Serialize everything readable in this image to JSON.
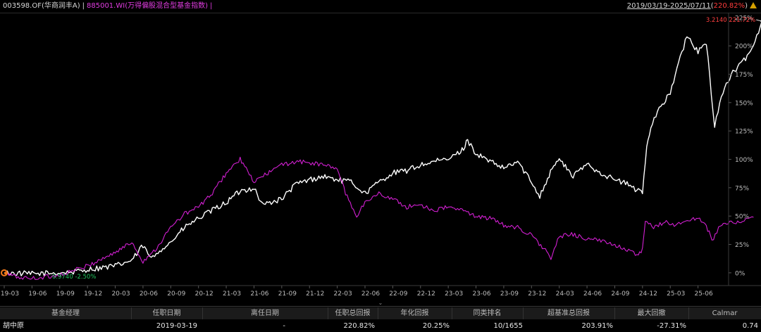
{
  "header": {
    "fund": "003598.OF(华商润丰A)",
    "separator": "|",
    "benchmark": "885001.WI(万得偏股混合型基金指数)",
    "benchmark_sep": "|",
    "date_range": "2019/03/19-2025/07/11",
    "total_return": "220.82%"
  },
  "chart_data": {
    "type": "line",
    "x_ticks": [
      "19-03",
      "19-06",
      "19-09",
      "19-12",
      "20-03",
      "20-06",
      "20-09",
      "20-12",
      "21-03",
      "21-06",
      "21-09",
      "21-12",
      "22-03",
      "22-06",
      "22-09",
      "22-12",
      "23-03",
      "23-06",
      "23-09",
      "23-12",
      "24-03",
      "24-06",
      "24-09",
      "24-12",
      "25-03",
      "25-06"
    ],
    "y_ticks": [
      "0%",
      "25%",
      "50%",
      "75%",
      "100%",
      "125%",
      "150%",
      "175%",
      "200%",
      "225%"
    ],
    "ylim": [
      -10,
      228
    ],
    "y_axis_position": "right",
    "grid": false,
    "series": [
      {
        "name": "003598.OF(华商润丰A)",
        "color": "#ffffff",
        "points": [
          [
            0,
            0
          ],
          [
            1,
            -1
          ],
          [
            2,
            0
          ],
          [
            2.6,
            1
          ],
          [
            3,
            3
          ],
          [
            4,
            6
          ],
          [
            4.6,
            11
          ],
          [
            5,
            24
          ],
          [
            5.3,
            12
          ],
          [
            5.6,
            20
          ],
          [
            6,
            27
          ],
          [
            6.5,
            40
          ],
          [
            7,
            48
          ],
          [
            7.5,
            55
          ],
          [
            8,
            62
          ],
          [
            8.5,
            72
          ],
          [
            9,
            75
          ],
          [
            9.3,
            60
          ],
          [
            10,
            65
          ],
          [
            10.5,
            78
          ],
          [
            11,
            82
          ],
          [
            11.5,
            85
          ],
          [
            12,
            82
          ],
          [
            12.5,
            80
          ],
          [
            13,
            70
          ],
          [
            13.5,
            80
          ],
          [
            14,
            88
          ],
          [
            14.5,
            90
          ],
          [
            15,
            95
          ],
          [
            15.5,
            98
          ],
          [
            16,
            100
          ],
          [
            16.5,
            108
          ],
          [
            16.7,
            117
          ],
          [
            17,
            105
          ],
          [
            17.5,
            98
          ],
          [
            18,
            92
          ],
          [
            18.5,
            98
          ],
          [
            19,
            80
          ],
          [
            19.3,
            68
          ],
          [
            19.8,
            95
          ],
          [
            20,
            100
          ],
          [
            20.5,
            85
          ],
          [
            21,
            96
          ],
          [
            21.5,
            88
          ],
          [
            22,
            82
          ],
          [
            22.5,
            78
          ],
          [
            22.8,
            72
          ],
          [
            23,
            72
          ],
          [
            23.15,
            110
          ],
          [
            23.3,
            130
          ],
          [
            23.6,
            145
          ],
          [
            24,
            158
          ],
          [
            24.3,
            185
          ],
          [
            24.6,
            208
          ],
          [
            25,
            195
          ],
          [
            25.3,
            202
          ],
          [
            25.6,
            130
          ],
          [
            25.9,
            160
          ],
          [
            26.2,
            175
          ],
          [
            26.6,
            185
          ],
          [
            27,
            200
          ],
          [
            27.3,
            221.72
          ]
        ]
      },
      {
        "name": "885001.WI(万得偏股混合型基金指数)",
        "color": "#d21fd2",
        "points": [
          [
            0,
            0
          ],
          [
            0.5,
            -4
          ],
          [
            1,
            -5
          ],
          [
            2,
            -2
          ],
          [
            3,
            6
          ],
          [
            4,
            18
          ],
          [
            4.6,
            27
          ],
          [
            5,
            10
          ],
          [
            5.5,
            22
          ],
          [
            6,
            40
          ],
          [
            6.5,
            52
          ],
          [
            7,
            58
          ],
          [
            7.5,
            70
          ],
          [
            8,
            88
          ],
          [
            8.5,
            100
          ],
          [
            9,
            80
          ],
          [
            9.5,
            88
          ],
          [
            10,
            95
          ],
          [
            10.5,
            98
          ],
          [
            11,
            97
          ],
          [
            11.5,
            95
          ],
          [
            12,
            92
          ],
          [
            12.3,
            70
          ],
          [
            12.7,
            50
          ],
          [
            13,
            62
          ],
          [
            13.5,
            70
          ],
          [
            14,
            65
          ],
          [
            14.5,
            58
          ],
          [
            15,
            60
          ],
          [
            15.5,
            55
          ],
          [
            16,
            58
          ],
          [
            16.5,
            55
          ],
          [
            17,
            50
          ],
          [
            17.5,
            48
          ],
          [
            18,
            42
          ],
          [
            18.5,
            40
          ],
          [
            19,
            33
          ],
          [
            19.5,
            20
          ],
          [
            19.7,
            12
          ],
          [
            20,
            32
          ],
          [
            20.5,
            34
          ],
          [
            21,
            30
          ],
          [
            21.5,
            28
          ],
          [
            22,
            25
          ],
          [
            22.5,
            20
          ],
          [
            22.8,
            15
          ],
          [
            23,
            20
          ],
          [
            23.1,
            45
          ],
          [
            23.4,
            40
          ],
          [
            23.8,
            45
          ],
          [
            24.2,
            42
          ],
          [
            24.6,
            46
          ],
          [
            25,
            48
          ],
          [
            25.3,
            42
          ],
          [
            25.5,
            28
          ],
          [
            25.8,
            42
          ],
          [
            26.2,
            44
          ],
          [
            26.6,
            46
          ],
          [
            27,
            49
          ]
        ]
      }
    ],
    "annotations": {
      "start_label": "0.9740 -2.50%",
      "end_label": "3.2140 221.72%"
    }
  },
  "table": {
    "headers": [
      "基金经理",
      "任职日期",
      "离任日期",
      "任职总回报",
      "年化回报",
      "同类排名",
      "超基准总回报",
      "最大回撤",
      "Calmar"
    ],
    "row": [
      "胡中原",
      "2019-03-19",
      "-",
      "220.82%",
      "20.25%",
      "10/1655",
      "203.91%",
      "-27.31%",
      "0.74"
    ]
  },
  "colors": {
    "background": "#000000",
    "fund_line": "#ffffff",
    "benchmark_line": "#d21fd2",
    "negative_label": "#22c55e",
    "end_label": "#ff4040",
    "start_marker": "#f07a1a"
  }
}
